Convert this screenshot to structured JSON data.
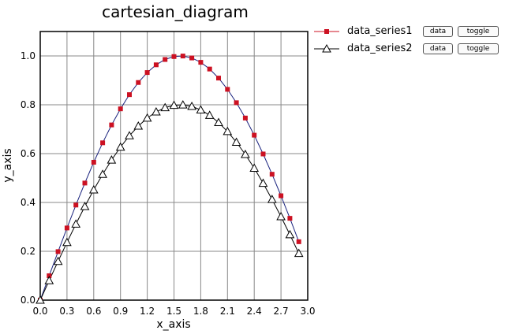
{
  "chart_data": {
    "type": "line",
    "title": "cartesian_diagram",
    "xlabel": "x_axis",
    "ylabel": "y_axis",
    "xlim": [
      0,
      3.0
    ],
    "ylim": [
      0,
      1.1
    ],
    "x_ticks": [
      "0.0",
      "0.3",
      "0.6",
      "0.9",
      "1.2",
      "1.5",
      "1.8",
      "2.1",
      "2.4",
      "2.7",
      "3.0"
    ],
    "y_ticks": [
      "0.0",
      "0.2",
      "0.4",
      "0.6",
      "0.8",
      "1.0"
    ],
    "grid": true,
    "legend_position": "right",
    "x": [
      0,
      0.1,
      0.2,
      0.3,
      0.4,
      0.5,
      0.6,
      0.7,
      0.8,
      0.9,
      1.0,
      1.1,
      1.2,
      1.3,
      1.4,
      1.5,
      1.6,
      1.7,
      1.8,
      1.9,
      2.0,
      2.1,
      2.2,
      2.3,
      2.4,
      2.5,
      2.6,
      2.7,
      2.8,
      2.9
    ],
    "series": [
      {
        "name": "data_series1",
        "color": "#cc1122",
        "marker": "square",
        "values": [
          0,
          0.0998,
          0.1987,
          0.2955,
          0.3894,
          0.4794,
          0.5646,
          0.6442,
          0.7174,
          0.7833,
          0.8415,
          0.8912,
          0.932,
          0.9636,
          0.9854,
          0.9975,
          0.9996,
          0.9917,
          0.9738,
          0.9463,
          0.9093,
          0.8632,
          0.8085,
          0.7457,
          0.6755,
          0.5985,
          0.5155,
          0.4274,
          0.335,
          0.2392
        ]
      },
      {
        "name": "data_series2",
        "color": "#000000",
        "marker": "triangle",
        "values": [
          0,
          0.0799,
          0.1589,
          0.2364,
          0.3115,
          0.3835,
          0.4517,
          0.5154,
          0.5739,
          0.6267,
          0.6732,
          0.713,
          0.7456,
          0.7709,
          0.7883,
          0.798,
          0.7997,
          0.7934,
          0.779,
          0.757,
          0.7274,
          0.6906,
          0.6468,
          0.5966,
          0.5404,
          0.4788,
          0.4124,
          0.3419,
          0.268,
          0.1914
        ]
      }
    ]
  },
  "legend": {
    "items": [
      {
        "label": "data_series1",
        "data_button": "data",
        "toggle_button": "toggle"
      },
      {
        "label": "data_series2",
        "data_button": "data",
        "toggle_button": "toggle"
      }
    ]
  },
  "colors": {
    "plot_frame": "#000000",
    "grid": "#888888",
    "series1_line": "#1a237e"
  }
}
